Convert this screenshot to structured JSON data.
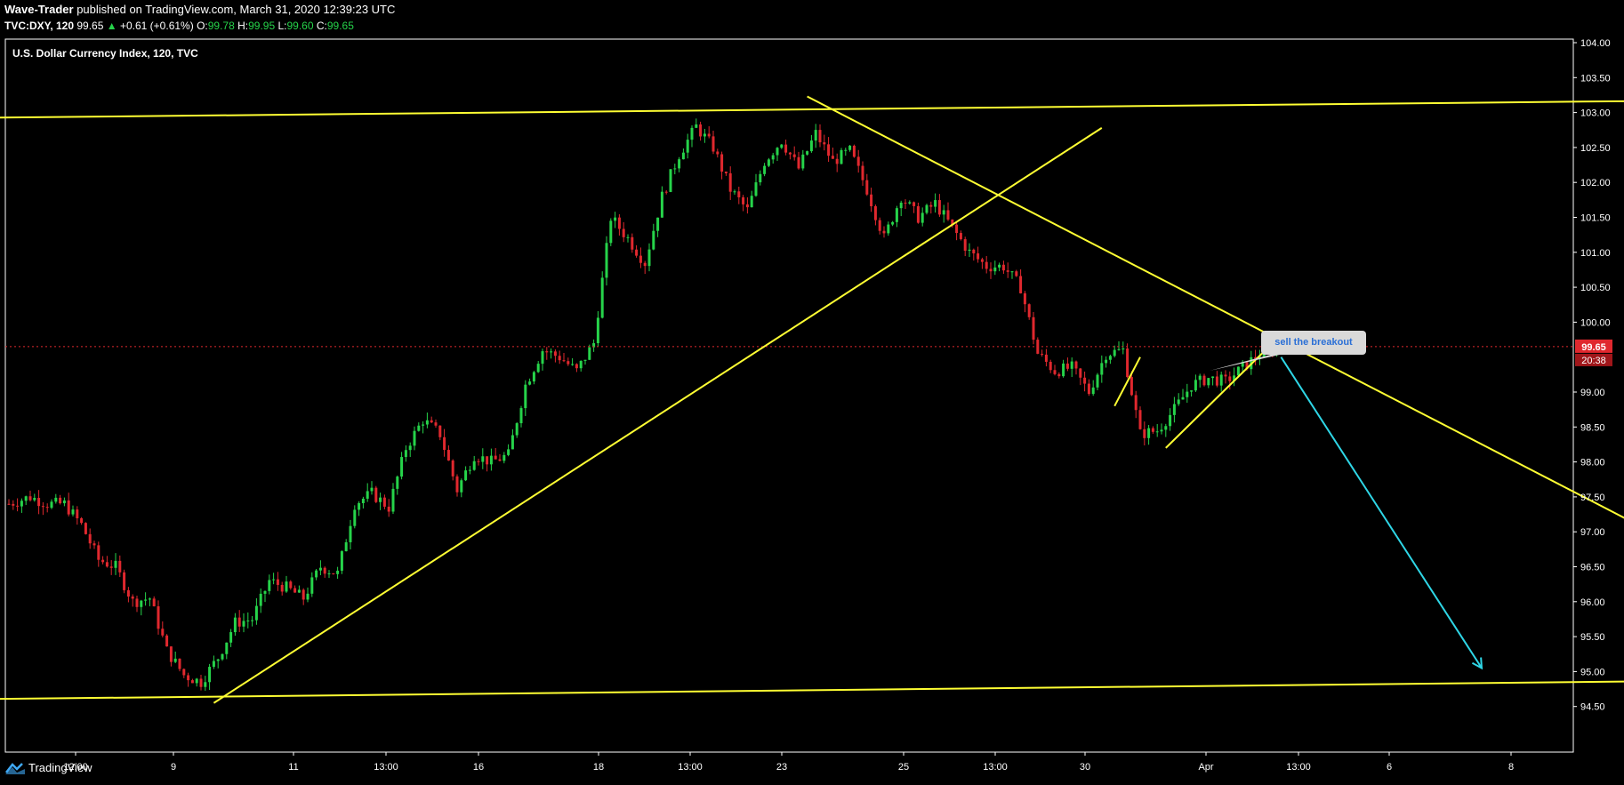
{
  "header": {
    "author": "Wave-Trader",
    "published": "published on TradingView.com, March 31, 2020 12:39:23 UTC",
    "symbol": "TVC:DXY, 120",
    "last": "99.65",
    "change": "+0.61 (+0.61%)",
    "o_label": "O:",
    "o_val": "99.78",
    "h_label": "H:",
    "h_val": "99.95",
    "l_label": "L:",
    "l_val": "99.60",
    "c_label": "C:",
    "c_val": "99.65"
  },
  "footer": {
    "brand": "TradingView"
  },
  "colors": {
    "bg": "#000000",
    "up": "#26d34a",
    "down": "#e0282e",
    "trendline": "#ffff33",
    "target_arrow": "#2fd6e6",
    "price_line": "#e0282e"
  },
  "chart_data": {
    "type": "candlestick",
    "title": "U.S. Dollar Currency Index, 120, TVC",
    "ylim": [
      94.0,
      104.0
    ],
    "y_ticks": [
      "104.00",
      "103.50",
      "103.00",
      "102.50",
      "102.00",
      "101.50",
      "101.00",
      "100.50",
      "100.00",
      "99.00",
      "98.50",
      "98.00",
      "97.50",
      "97.00",
      "96.50",
      "96.00",
      "95.50",
      "95.00",
      "94.50"
    ],
    "x_ticks": [
      "12:00",
      "9",
      "11",
      "13:00",
      "16",
      "18",
      "13:00",
      "23",
      "25",
      "13:00",
      "30",
      "Apr",
      "13:00",
      "6",
      "8"
    ],
    "last_price": "99.65",
    "countdown": "20:38",
    "annotation": "sell the breakout",
    "price_path": [
      [
        0,
        97.4
      ],
      [
        5,
        97.5
      ],
      [
        9,
        97.4
      ],
      [
        13,
        97.4
      ],
      [
        17,
        97.1
      ],
      [
        21,
        96.6
      ],
      [
        25,
        96.5
      ],
      [
        29,
        96.0
      ],
      [
        33,
        96.05
      ],
      [
        37,
        95.3
      ],
      [
        41,
        94.95
      ],
      [
        45,
        94.85
      ],
      [
        49,
        95.2
      ],
      [
        53,
        95.7
      ],
      [
        57,
        95.75
      ],
      [
        61,
        96.3
      ],
      [
        65,
        96.2
      ],
      [
        69,
        96.05
      ],
      [
        73,
        96.5
      ],
      [
        77,
        96.4
      ],
      [
        81,
        97.4
      ],
      [
        85,
        97.55
      ],
      [
        89,
        97.35
      ],
      [
        93,
        98.2
      ],
      [
        97,
        98.6
      ],
      [
        101,
        98.4
      ],
      [
        105,
        97.6
      ],
      [
        109,
        98.1
      ],
      [
        113,
        98.0
      ],
      [
        117,
        98.1
      ],
      [
        121,
        99.1
      ],
      [
        125,
        99.6
      ],
      [
        129,
        99.5
      ],
      [
        133,
        99.3
      ],
      [
        137,
        99.7
      ],
      [
        141,
        101.5
      ],
      [
        145,
        101.2
      ],
      [
        149,
        100.85
      ],
      [
        153,
        101.8
      ],
      [
        157,
        102.4
      ],
      [
        161,
        102.8
      ],
      [
        165,
        102.5
      ],
      [
        169,
        101.9
      ],
      [
        173,
        101.6
      ],
      [
        177,
        102.3
      ],
      [
        181,
        102.6
      ],
      [
        185,
        102.2
      ],
      [
        189,
        102.7
      ],
      [
        193,
        102.3
      ],
      [
        197,
        102.45
      ],
      [
        201,
        101.9
      ],
      [
        205,
        101.2
      ],
      [
        209,
        101.8
      ],
      [
        213,
        101.5
      ],
      [
        217,
        101.7
      ],
      [
        221,
        101.35
      ],
      [
        225,
        101.0
      ],
      [
        229,
        100.8
      ],
      [
        233,
        100.8
      ],
      [
        237,
        100.5
      ],
      [
        241,
        99.55
      ],
      [
        245,
        99.3
      ],
      [
        249,
        99.35
      ],
      [
        253,
        99.0
      ],
      [
        257,
        99.55
      ],
      [
        261,
        99.6
      ],
      [
        265,
        98.4
      ],
      [
        269,
        98.45
      ],
      [
        273,
        98.75
      ],
      [
        277,
        99.1
      ],
      [
        281,
        99.2
      ],
      [
        285,
        99.15
      ],
      [
        289,
        99.35
      ],
      [
        293,
        99.55
      ],
      [
        297,
        99.65
      ]
    ],
    "trendlines": [
      {
        "name": "upper-channel",
        "points": [
          [
            -15,
            102.92
          ],
          [
            520,
            103.25
          ]
        ]
      },
      {
        "name": "lower-channel",
        "points": [
          [
            -15,
            94.6
          ],
          [
            520,
            94.95
          ]
        ]
      },
      {
        "name": "rising-support",
        "points": [
          [
            48,
            94.55
          ],
          [
            256,
            102.78
          ]
        ]
      },
      {
        "name": "falling-resistance",
        "points": [
          [
            187,
            103.23
          ],
          [
            393,
            96.74
          ]
        ]
      },
      {
        "name": "bear-flag-left",
        "points": [
          [
            259,
            98.8
          ],
          [
            265,
            99.5
          ]
        ]
      },
      {
        "name": "bear-flag-right",
        "points": [
          [
            271,
            98.2
          ],
          [
            296,
            99.7
          ]
        ]
      }
    ],
    "target_arrow": {
      "from": [
        298,
        99.5
      ],
      "to": [
        345,
        95.05
      ]
    }
  }
}
